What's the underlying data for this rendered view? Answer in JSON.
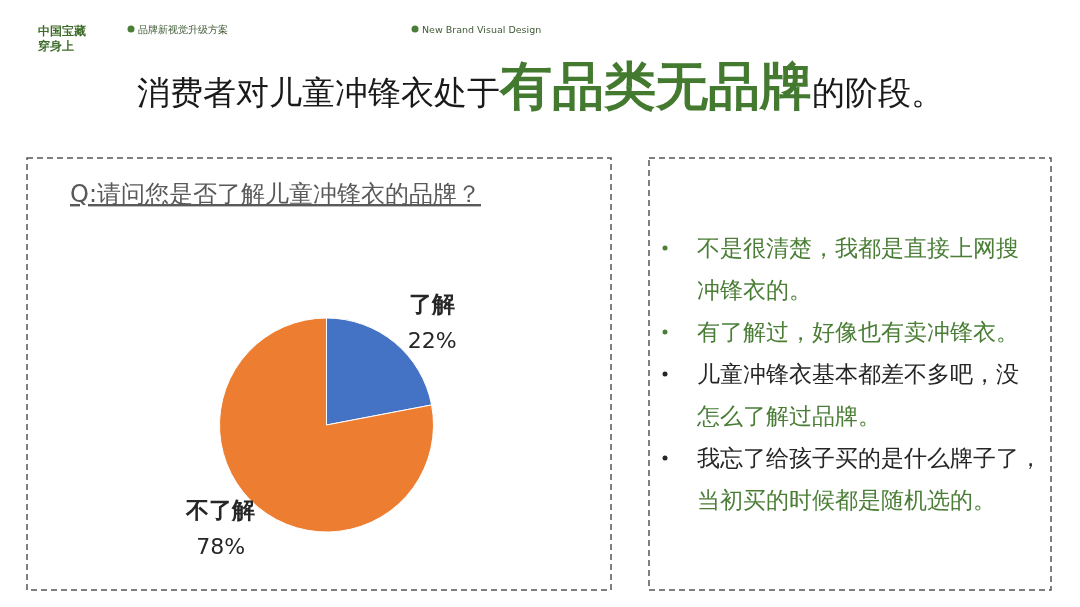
{
  "chart_data": [
    {
      "type": "pie",
      "title": "消费者对儿童冲锋衣处于有品类无品牌的阶段。",
      "subtitle": "Q:请问您是否了解儿童冲锋衣的品牌？",
      "categories": [
        "了解",
        "不了解"
      ],
      "values": [
        22,
        78
      ],
      "colors": [
        "#4472c4",
        "#ed7d31"
      ],
      "value_labels": [
        "22%",
        "78%"
      ],
      "annotations": [
        "中国宝藏穿身上",
        "品牌新视觉升级方案",
        "New Brand Visual Design"
      ]
    },
    {
      "type": "other",
      "annotations": [
        "不是很清楚，我都是直接上网搜冲锋衣的。",
        "有了解过，好像也有卖冲锋衣。",
        "儿童冲锋衣基本都差不多吧，没怎么了解过品牌。",
        "我忘了给孩子买的是什么牌子了，当初买的时候都是随机选的。"
      ]
    }
  ]
}
